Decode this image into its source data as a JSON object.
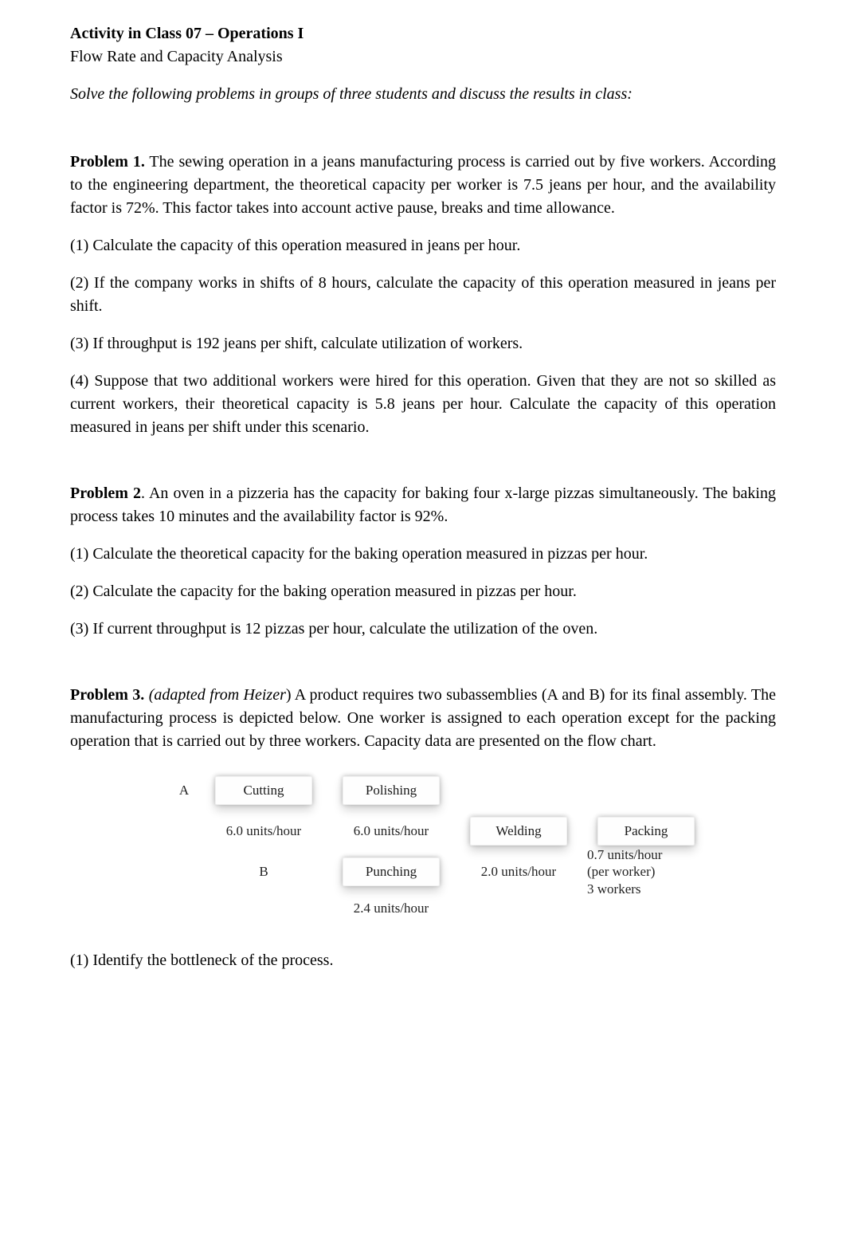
{
  "header": {
    "title": "Activity in Class 07 – Operations I",
    "subtitle": "Flow Rate and Capacity Analysis"
  },
  "instruction": "Solve the following problems in groups of three students and discuss the results in class:",
  "p1": {
    "label": "Problem 1.",
    "intro": " The sewing operation in a jeans manufacturing process is carried out by five workers. According to the engineering department, the theoretical capacity per worker is 7.5 jeans per hour, and the availability factor is 72%. This factor takes into account active pause, breaks and time allowance.",
    "q1": "(1) Calculate the capacity of this operation measured in jeans per hour.",
    "q2": "(2) If the company works in shifts of 8 hours, calculate the capacity of this operation measured in jeans per shift.",
    "q3": "(3) If throughput is 192 jeans per shift, calculate utilization of workers.",
    "q4": "(4) Suppose that two additional workers were hired for this operation. Given that they are not so skilled as current workers, their theoretical capacity is 5.8 jeans per hour. Calculate the capacity of this operation measured in jeans per shift under this scenario."
  },
  "p2": {
    "label": "Problem 2",
    "intro": ". An oven in a pizzeria has the capacity for baking four x-large pizzas simultaneously. The baking process takes 10 minutes and the availability factor is 92%.",
    "q1": "(1) Calculate the theoretical capacity for the baking operation measured in pizzas per hour.",
    "q2": "(2) Calculate the capacity for the baking operation measured in pizzas per hour.",
    "q3": "(3) If current throughput is 12 pizzas per hour, calculate the utilization of the oven."
  },
  "p3": {
    "label": "Problem 3.",
    "before_em": " ",
    "em": "(adapted from Heizer",
    "after_em": ") A product requires two subassemblies (A and B) for its final assembly. The manufacturing process is depicted below. One worker is assigned to each operation except for the packing operation that is carried out by three workers. Capacity data are presented on the flow chart.",
    "q1": "(1) Identify the bottleneck of the process."
  },
  "chart": {
    "row_label_A": "A",
    "row_label_B": "B",
    "nodes": {
      "cutting": "Cutting",
      "polishing": "Polishing",
      "punching": "Punching",
      "welding": "Welding",
      "packing": "Packing"
    },
    "caps": {
      "cutting": "6.0 units/hour",
      "polishing": "6.0 units/hour",
      "punching": "2.4 units/hour",
      "welding": "2.0 units/hour",
      "packing_rate": "0.7 units/hour",
      "packing_per": "(per worker)",
      "packing_workers": "3 workers"
    },
    "style": {
      "node_bg": "#fefefe",
      "node_shadow": "rgba(0,0,0,0.18)",
      "text_color": "#1a1a1a",
      "font_size_pt": 17
    }
  }
}
